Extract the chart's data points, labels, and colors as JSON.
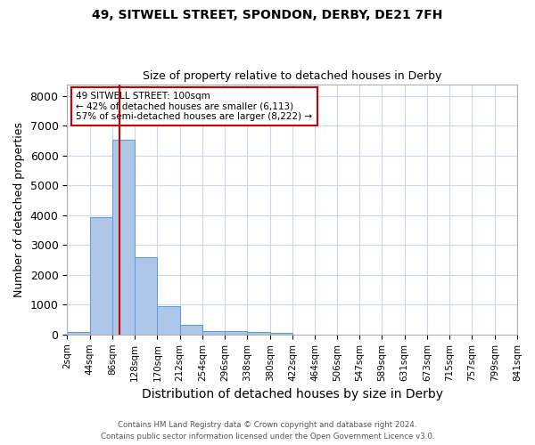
{
  "title1": "49, SITWELL STREET, SPONDON, DERBY, DE21 7FH",
  "title2": "Size of property relative to detached houses in Derby",
  "xlabel": "Distribution of detached houses by size in Derby",
  "ylabel": "Number of detached properties",
  "footnote1": "Contains HM Land Registry data © Crown copyright and database right 2024.",
  "footnote2": "Contains public sector information licensed under the Open Government Licence v3.0.",
  "annotation_line1": "49 SITWELL STREET: 100sqm",
  "annotation_line2": "← 42% of detached houses are smaller (6,113)",
  "annotation_line3": "57% of semi-detached houses are larger (8,222) →",
  "property_size": 100,
  "bar_color": "#aec6e8",
  "bar_edge_color": "#5b9bd5",
  "redline_color": "#cc0000",
  "annotation_box_color": "#cc0000",
  "background_color": "#ffffff",
  "grid_color": "#c8d8e8",
  "bin_edges": [
    2,
    44,
    86,
    128,
    170,
    212,
    254,
    296,
    338,
    380,
    422,
    464,
    506,
    547,
    589,
    631,
    673,
    715,
    757,
    799,
    841
  ],
  "bin_counts": [
    75,
    3950,
    6550,
    2600,
    950,
    310,
    120,
    110,
    75,
    60,
    0,
    0,
    0,
    0,
    0,
    0,
    0,
    0,
    0,
    0
  ],
  "ylim": [
    0,
    8400
  ],
  "yticks": [
    0,
    1000,
    2000,
    3000,
    4000,
    5000,
    6000,
    7000,
    8000
  ]
}
